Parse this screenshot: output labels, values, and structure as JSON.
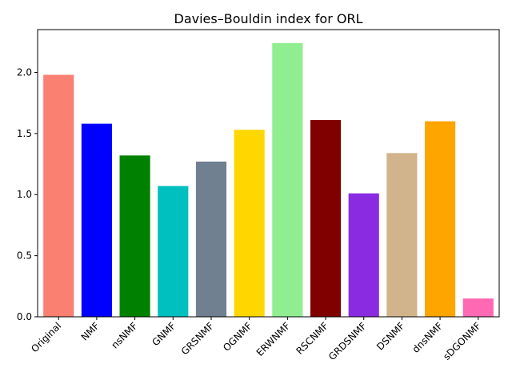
{
  "chart_data": {
    "type": "bar",
    "title": "Davies–Bouldin index for ORL",
    "xlabel": "",
    "ylabel": "",
    "categories": [
      "Original",
      "NMF",
      "nsNMF",
      "GNMF",
      "GRSNMF",
      "OGNMF",
      "ERWNMF",
      "RSCNMF",
      "GRDSNMF",
      "DSNMF",
      "dnsNMF",
      "sDGONMF"
    ],
    "values": [
      1.98,
      1.58,
      1.32,
      1.07,
      1.27,
      1.53,
      2.24,
      1.61,
      1.01,
      1.34,
      1.6,
      0.15
    ],
    "colors": [
      "#FA8072",
      "#0000FF",
      "#008000",
      "#00BFBF",
      "#708090",
      "#FFD700",
      "#90EE90",
      "#800000",
      "#8A2BE2",
      "#D2B48C",
      "#FFA500",
      "#FF69B4"
    ],
    "yticks": [
      "0.0",
      "0.5",
      "1.0",
      "1.5",
      "2.0"
    ],
    "ylim": [
      0,
      2.35
    ],
    "grid": false,
    "legend": "none"
  }
}
